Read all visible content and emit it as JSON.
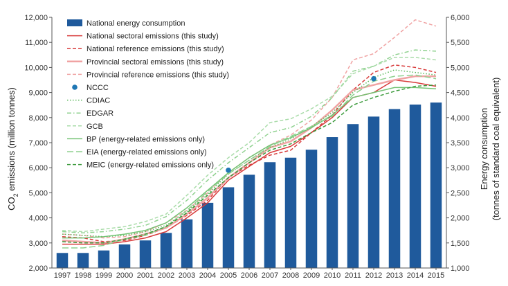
{
  "chart_data": {
    "type": "bar",
    "categories": [
      "1997",
      "1998",
      "1999",
      "2000",
      "2001",
      "2002",
      "2003",
      "2004",
      "2005",
      "2006",
      "2007",
      "2008",
      "2009",
      "2010",
      "2011",
      "2012",
      "2013",
      "2014",
      "2015"
    ],
    "left_axis": {
      "label_main": "CO",
      "label_sub": "2",
      "label_rest": " emissions (million tonnes)",
      "ylim": [
        2000,
        12000
      ],
      "ticks": [
        2000,
        3000,
        4000,
        5000,
        6000,
        7000,
        8000,
        9000,
        10000,
        11000,
        12000
      ],
      "tick_labels": [
        "2,000",
        "3,000",
        "4,000",
        "5,000",
        "6,000",
        "7,000",
        "8,000",
        "9,000",
        "10,000",
        "11,000",
        "12,000"
      ]
    },
    "right_axis": {
      "label_line1": "Energy consumption",
      "label_line2": "(tonnes of standard coal equivalent)",
      "ylim": [
        1000,
        6000
      ],
      "ticks": [
        1000,
        1500,
        2000,
        2500,
        3000,
        3500,
        4000,
        4500,
        5000,
        5500,
        6000
      ],
      "tick_labels": [
        "1,000",
        "1,500",
        "2,000",
        "2,500",
        "3,000",
        "3,500",
        "4,000",
        "4,500",
        "5,000",
        "5,500",
        "6,000"
      ]
    },
    "legend_position": "top-left",
    "bars": {
      "name": "National energy consumption",
      "axis": "right",
      "color": "#1f5a9c",
      "values": [
        1300,
        1300,
        1350,
        1470,
        1550,
        1700,
        1970,
        2300,
        2610,
        2860,
        3110,
        3200,
        3360,
        3610,
        3870,
        4020,
        4170,
        4260,
        4300
      ]
    },
    "series": [
      {
        "name": "National sectoral emissions (this study)",
        "color": "#d83b3b",
        "style": "solid",
        "values": [
          2950,
          2950,
          2950,
          3050,
          3200,
          3450,
          4000,
          4600,
          5500,
          6050,
          6600,
          6850,
          7400,
          8000,
          8800,
          9000,
          9500,
          9400,
          9250
        ]
      },
      {
        "name": "National reference emissions (this study)",
        "color": "#d83b3b",
        "style": "dashed",
        "values": [
          3250,
          3200,
          3050,
          3100,
          3300,
          3600,
          4100,
          4700,
          5600,
          6100,
          6500,
          6700,
          7400,
          8100,
          9100,
          9800,
          10100,
          10000,
          9800
        ]
      },
      {
        "name": "Provincial sectoral emissions (this study)",
        "color": "#f0a3a3",
        "style": "solid-thick",
        "values": [
          3100,
          3050,
          3000,
          3150,
          3350,
          3600,
          4150,
          4800,
          5600,
          6200,
          6800,
          7050,
          7600,
          8300,
          9100,
          9300,
          9500,
          9650,
          9650
        ]
      },
      {
        "name": "Provincial reference emissions (this study)",
        "color": "#f0a3a3",
        "style": "dashed",
        "values": [
          3350,
          3300,
          3200,
          3250,
          3450,
          3800,
          4300,
          5000,
          5800,
          6400,
          6900,
          7300,
          7900,
          8800,
          10300,
          10550,
          11200,
          11900,
          11650
        ]
      },
      {
        "name": "NCCC",
        "color": "#1f77b4",
        "style": "marker",
        "x": [
          "2005",
          "2012"
        ],
        "values": [
          5900,
          9550
        ]
      },
      {
        "name": "CDIAC",
        "color": "#5cb85c",
        "style": "dotted",
        "values": [
          3350,
          3300,
          3250,
          3300,
          3450,
          3700,
          4250,
          4950,
          5750,
          6300,
          6800,
          7150,
          7650,
          8200,
          9000,
          9600,
          9900,
          9800,
          9700
        ]
      },
      {
        "name": "EDGAR",
        "color": "#8fd18f",
        "style": "dashdot",
        "values": [
          3450,
          3400,
          3450,
          3550,
          3700,
          4050,
          4700,
          5500,
          6200,
          6800,
          7400,
          7600,
          8050,
          8800,
          9850,
          10050,
          10500,
          10700,
          10650
        ]
      },
      {
        "name": "GCB",
        "color": "#a9dca9",
        "style": "dashed",
        "values": [
          3500,
          3450,
          3550,
          3650,
          3850,
          4150,
          4900,
          5700,
          6400,
          7000,
          7800,
          7950,
          8350,
          8850,
          9750,
          10050,
          10400,
          10400,
          10300
        ]
      },
      {
        "name": "BP (energy-related emissions only)",
        "color": "#74c374",
        "style": "solid",
        "values": [
          3200,
          3200,
          3250,
          3350,
          3500,
          3800,
          4400,
          5100,
          5800,
          6400,
          6900,
          7200,
          7600,
          8100,
          8800,
          9000,
          9200,
          9200,
          9150
        ]
      },
      {
        "name": "EIA (energy-related emissions only)",
        "color": "#8fd18f",
        "style": "longdash",
        "values": [
          2800,
          2800,
          2900,
          3150,
          3300,
          3650,
          4300,
          5050,
          5750,
          6300,
          6850,
          7250,
          7650,
          8050,
          8900,
          9450,
          9650,
          9700,
          9550
        ]
      },
      {
        "name": "MEIC (energy-related emissions only)",
        "color": "#3c9a3c",
        "style": "dashed",
        "values": [
          3050,
          3000,
          3000,
          3150,
          3350,
          3650,
          4200,
          4900,
          5600,
          6200,
          6700,
          6950,
          7400,
          7800,
          8500,
          8800,
          9050,
          9250,
          9300
        ]
      }
    ]
  }
}
